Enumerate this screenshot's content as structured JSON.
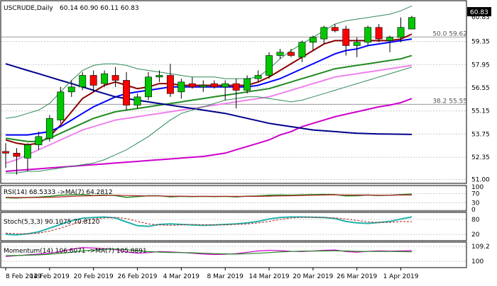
{
  "header": {
    "symbol": "USCRUDE,Daily",
    "ohlc": "60.14 60.90 60.11 60.83"
  },
  "price_badge": "60.83",
  "fib_labels": [
    {
      "text": "50.0 59.62",
      "value": 59.62
    },
    {
      "text": "38.2 55.55",
      "value": 55.55
    }
  ],
  "indicators": {
    "rsi": {
      "label": "RSI(14) 68.5333  ->MA(7) 64.2812"
    },
    "stoch": {
      "label": "Stoch(5,3,3) 90.1075 70.8120"
    },
    "momentum": {
      "label": "Momentum(14) 106.6071  ->MA(7) 105.8891"
    }
  },
  "colors": {
    "bull_candle": "#ff0000",
    "bear_candle": "#00c800",
    "ma_fast": "#8b0000",
    "ma_blue": "#0000ff",
    "ma_green": "#228b22",
    "ma_pink": "#ee82ee",
    "ma_magenta": "#cc00cc",
    "ma_navy": "#00008b",
    "bollinger": "#2e8b57",
    "rsi_line": "#228b22",
    "rsi_ma": "#b22222",
    "stoch_main": "#20b2aa",
    "stoch_signal": "#b22222",
    "mom_line": "#cc00cc",
    "mom_ma": "#228b22"
  },
  "chart_data": {
    "type": "candlestick",
    "title": "USCRUDE,Daily",
    "y_ticks": [
      "60.83",
      "59.35",
      "57.95",
      "56.55",
      "55.15",
      "53.75",
      "52.35",
      "51.00"
    ],
    "y_range": [
      50.9,
      61.6
    ],
    "x_labels": [
      "8 Feb 2019",
      "14 Feb 2019",
      "20 Feb 2019",
      "26 Feb 2019",
      "4 Mar 2019",
      "8 Mar 2019",
      "14 Mar 2019",
      "20 Mar 2019",
      "26 Mar 2019",
      "1 Apr 2019"
    ],
    "candles": [
      {
        "o": 52.7,
        "h": 53.2,
        "l": 51.7,
        "c": 52.6
      },
      {
        "o": 52.6,
        "h": 52.9,
        "l": 51.3,
        "c": 52.4
      },
      {
        "o": 52.3,
        "h": 53.2,
        "l": 51.5,
        "c": 53.1
      },
      {
        "o": 53.1,
        "h": 53.9,
        "l": 52.8,
        "c": 53.6
      },
      {
        "o": 53.5,
        "h": 54.9,
        "l": 53.3,
        "c": 54.7
      },
      {
        "o": 54.6,
        "h": 56.6,
        "l": 54.4,
        "c": 56.3
      },
      {
        "o": 56.3,
        "h": 57.0,
        "l": 56.0,
        "c": 56.6
      },
      {
        "o": 56.6,
        "h": 57.5,
        "l": 56.4,
        "c": 57.3
      },
      {
        "o": 57.3,
        "h": 57.6,
        "l": 56.3,
        "c": 56.7
      },
      {
        "o": 56.8,
        "h": 57.6,
        "l": 56.6,
        "c": 57.4
      },
      {
        "o": 57.3,
        "h": 57.8,
        "l": 56.6,
        "c": 57.0
      },
      {
        "o": 57.0,
        "h": 57.5,
        "l": 55.2,
        "c": 55.5
      },
      {
        "o": 55.5,
        "h": 56.2,
        "l": 55.3,
        "c": 56.0
      },
      {
        "o": 56.0,
        "h": 57.5,
        "l": 55.8,
        "c": 57.2
      },
      {
        "o": 57.2,
        "h": 57.6,
        "l": 56.9,
        "c": 57.3
      },
      {
        "o": 57.3,
        "h": 58.0,
        "l": 56.0,
        "c": 56.2
      },
      {
        "o": 56.3,
        "h": 57.1,
        "l": 55.9,
        "c": 56.9
      },
      {
        "o": 56.8,
        "h": 57.2,
        "l": 56.5,
        "c": 56.6
      },
      {
        "o": 56.6,
        "h": 57.0,
        "l": 56.3,
        "c": 56.7
      },
      {
        "o": 56.8,
        "h": 57.0,
        "l": 56.5,
        "c": 56.6
      },
      {
        "o": 56.6,
        "h": 57.0,
        "l": 55.8,
        "c": 56.8
      },
      {
        "o": 56.8,
        "h": 57.1,
        "l": 55.3,
        "c": 56.4
      },
      {
        "o": 56.4,
        "h": 57.3,
        "l": 56.2,
        "c": 57.1
      },
      {
        "o": 57.1,
        "h": 57.6,
        "l": 56.9,
        "c": 57.3
      },
      {
        "o": 57.3,
        "h": 58.7,
        "l": 57.1,
        "c": 58.5
      },
      {
        "o": 58.5,
        "h": 58.9,
        "l": 58.3,
        "c": 58.7
      },
      {
        "o": 58.7,
        "h": 58.9,
        "l": 58.4,
        "c": 58.5
      },
      {
        "o": 58.4,
        "h": 59.4,
        "l": 58.1,
        "c": 59.3
      },
      {
        "o": 59.3,
        "h": 59.7,
        "l": 58.8,
        "c": 59.6
      },
      {
        "o": 59.5,
        "h": 60.3,
        "l": 59.2,
        "c": 60.2
      },
      {
        "o": 60.2,
        "h": 60.4,
        "l": 59.9,
        "c": 60.0
      },
      {
        "o": 60.1,
        "h": 60.3,
        "l": 58.5,
        "c": 59.1
      },
      {
        "o": 59.1,
        "h": 59.6,
        "l": 58.4,
        "c": 59.3
      },
      {
        "o": 59.3,
        "h": 60.3,
        "l": 59.1,
        "c": 60.2
      },
      {
        "o": 60.2,
        "h": 60.4,
        "l": 59.3,
        "c": 59.5
      },
      {
        "o": 59.4,
        "h": 59.7,
        "l": 58.7,
        "c": 59.6
      },
      {
        "o": 59.6,
        "h": 60.8,
        "l": 59.3,
        "c": 60.2
      },
      {
        "o": 60.1,
        "h": 60.9,
        "l": 60.1,
        "c": 60.8
      }
    ],
    "lines": [
      {
        "name": "ma_fast",
        "color": "#8b0000",
        "width": 2,
        "values": [
          53.4,
          53.2,
          53.1,
          53.2,
          53.6,
          54.3,
          55.1,
          55.9,
          56.3,
          56.7,
          56.9,
          56.7,
          56.5,
          56.6,
          56.8,
          56.8,
          56.7,
          56.7,
          56.7,
          56.7,
          56.7,
          56.7,
          56.7,
          56.9,
          57.2,
          57.6,
          58.0,
          58.4,
          58.8,
          59.2,
          59.4,
          59.4,
          59.4,
          59.4,
          59.4,
          59.4,
          59.5,
          59.8
        ]
      },
      {
        "name": "ma_blue",
        "color": "#0000ff",
        "width": 2,
        "values": [
          53.7,
          53.7,
          53.7,
          53.8,
          53.9,
          54.2,
          54.6,
          55.0,
          55.4,
          55.7,
          56.0,
          56.2,
          56.3,
          56.4,
          56.5,
          56.6,
          56.6,
          56.6,
          56.6,
          56.6,
          56.6,
          56.6,
          56.6,
          56.7,
          56.9,
          57.1,
          57.4,
          57.7,
          58.0,
          58.3,
          58.6,
          58.8,
          58.9,
          59.1,
          59.2,
          59.3,
          59.4,
          59.5
        ]
      },
      {
        "name": "ma_green",
        "color": "#228b22",
        "width": 2,
        "values": [
          53.5,
          53.4,
          53.3,
          53.3,
          53.5,
          53.8,
          54.1,
          54.4,
          54.7,
          54.9,
          55.1,
          55.2,
          55.3,
          55.4,
          55.5,
          55.6,
          55.7,
          55.8,
          55.9,
          56.0,
          56.1,
          56.2,
          56.3,
          56.4,
          56.5,
          56.7,
          56.9,
          57.1,
          57.3,
          57.5,
          57.7,
          57.8,
          57.9,
          58.0,
          58.1,
          58.2,
          58.3,
          58.5
        ]
      },
      {
        "name": "ma_pink",
        "color": "#ee82ee",
        "width": 2,
        "values": [
          52.0,
          52.2,
          52.5,
          52.8,
          53.1,
          53.4,
          53.7,
          54.0,
          54.2,
          54.4,
          54.6,
          54.7,
          54.8,
          54.9,
          55.0,
          55.1,
          55.2,
          55.3,
          55.4,
          55.5,
          55.6,
          55.7,
          55.8,
          55.9,
          56.0,
          56.2,
          56.4,
          56.6,
          56.8,
          57.0,
          57.2,
          57.3,
          57.4,
          57.5,
          57.6,
          57.7,
          57.8,
          57.9
        ]
      },
      {
        "name": "ma_magenta",
        "color": "#cc00cc",
        "width": 2,
        "values": [
          51.5,
          51.55,
          51.6,
          51.65,
          51.7,
          51.75,
          51.8,
          51.85,
          51.9,
          51.95,
          52.0,
          52.05,
          52.1,
          52.15,
          52.2,
          52.25,
          52.3,
          52.35,
          52.4,
          52.5,
          52.6,
          52.8,
          53.0,
          53.2,
          53.4,
          53.7,
          53.9,
          54.2,
          54.4,
          54.6,
          54.8,
          54.95,
          55.1,
          55.25,
          55.4,
          55.5,
          55.65,
          55.9
        ]
      },
      {
        "name": "ma_navy",
        "color": "#00008b",
        "width": 2,
        "values": [
          58.0,
          57.8,
          57.6,
          57.4,
          57.2,
          57.0,
          56.8,
          56.6,
          56.4,
          56.2,
          56.0,
          55.9,
          55.8,
          55.7,
          55.6,
          55.5,
          55.4,
          55.3,
          55.2,
          55.1,
          55.0,
          54.85,
          54.7,
          54.55,
          54.4,
          54.3,
          54.2,
          54.1,
          54.0,
          53.95,
          53.9,
          53.85,
          53.8,
          53.78,
          53.76,
          53.75,
          53.74,
          53.73
        ]
      },
      {
        "name": "bb_upper",
        "color": "#2e8b57",
        "width": 1,
        "values": [
          54.7,
          54.8,
          55.0,
          55.2,
          55.6,
          56.3,
          57.0,
          57.6,
          57.9,
          58.0,
          58.0,
          57.9,
          57.7,
          57.6,
          57.5,
          57.4,
          57.3,
          57.2,
          57.2,
          57.2,
          57.1,
          57.1,
          57.1,
          57.2,
          57.7,
          58.3,
          58.8,
          59.2,
          59.6,
          60.0,
          60.4,
          60.6,
          60.7,
          60.8,
          60.9,
          61.0,
          61.2,
          61.5
        ]
      },
      {
        "name": "bb_lower",
        "color": "#2e8b57",
        "width": 1,
        "values": [
          51.4,
          51.4,
          51.5,
          51.5,
          51.6,
          51.7,
          51.8,
          51.9,
          52.0,
          52.2,
          52.5,
          52.8,
          53.2,
          53.6,
          54.1,
          54.6,
          55.0,
          55.2,
          55.4,
          55.6,
          55.8,
          55.9,
          56.0,
          56.0,
          55.9,
          55.8,
          55.7,
          55.8,
          56.0,
          56.2,
          56.4,
          56.6,
          56.8,
          57.0,
          57.2,
          57.4,
          57.6,
          57.8
        ]
      }
    ],
    "rsi": {
      "levels": [
        100,
        70,
        30,
        0
      ],
      "main": [
        52,
        51,
        53,
        55,
        58,
        63,
        65,
        66,
        62,
        64,
        62,
        54,
        57,
        61,
        61,
        56,
        58,
        57,
        58,
        57,
        58,
        56,
        59,
        60,
        63,
        64,
        63,
        65,
        66,
        67,
        66,
        60,
        61,
        64,
        62,
        63,
        66,
        68.5
      ],
      "ma": [
        54,
        53,
        53,
        53,
        54,
        56,
        58,
        60,
        61,
        62,
        63,
        62,
        61,
        60,
        60,
        59,
        59,
        58,
        58,
        58,
        58,
        58,
        58,
        58,
        59,
        60,
        61,
        62,
        63,
        64,
        65,
        64,
        64,
        64,
        63,
        63,
        64,
        64.3
      ]
    },
    "stoch": {
      "levels": [
        80,
        20
      ],
      "main": [
        20,
        18,
        22,
        30,
        45,
        60,
        75,
        85,
        88,
        90,
        86,
        70,
        55,
        52,
        60,
        62,
        60,
        58,
        56,
        58,
        60,
        62,
        66,
        72,
        82,
        88,
        90,
        90,
        89,
        88,
        84,
        72,
        66,
        64,
        68,
        72,
        82,
        90.1
      ],
      "signal": [
        25,
        22,
        22,
        25,
        33,
        45,
        60,
        72,
        82,
        86,
        88,
        84,
        72,
        62,
        58,
        56,
        58,
        60,
        59,
        58,
        58,
        60,
        62,
        66,
        72,
        80,
        86,
        88,
        89,
        88,
        86,
        82,
        76,
        70,
        68,
        68,
        72,
        70.8
      ]
    },
    "momentum": {
      "levels": [
        109.2,
        100
      ],
      "main": [
        103,
        103.5,
        104,
        104.5,
        105,
        106,
        107.5,
        108.5,
        108.2,
        107.8,
        107.2,
        105.8,
        105.0,
        105.4,
        106.0,
        105.8,
        105.5,
        105.0,
        104.5,
        104.2,
        104.4,
        104.8,
        105.6,
        106.4,
        106.8,
        106.6,
        106.2,
        106.0,
        106.4,
        106.8,
        107.0,
        106.0,
        105.6,
        106.2,
        106.5,
        106.3,
        106.4,
        106.6
      ],
      "ma": [
        103.5,
        103.6,
        103.8,
        104.0,
        104.4,
        104.9,
        105.6,
        106.4,
        107.0,
        107.4,
        107.6,
        107.2,
        106.6,
        106.0,
        105.7,
        105.5,
        105.4,
        105.3,
        105.0,
        104.8,
        104.6,
        104.5,
        104.7,
        105.0,
        105.4,
        105.8,
        106.1,
        106.3,
        106.3,
        106.4,
        106.5,
        106.4,
        106.2,
        106.1,
        106.1,
        106.1,
        106.0,
        105.9
      ]
    }
  }
}
